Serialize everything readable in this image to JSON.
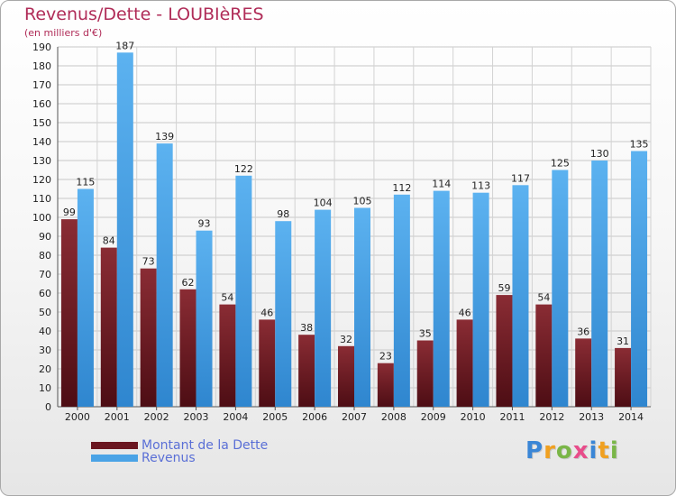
{
  "title": "Revenus/Dette - LOUBIèRES",
  "subtitle": "(en milliers d'€)",
  "brand": {
    "text": "Proxiti",
    "letter_colors": [
      "#3a86d6",
      "#f0a020",
      "#7ab648",
      "#e84c8a",
      "#3a86d6",
      "#f0a020",
      "#7ab648"
    ]
  },
  "colors": {
    "dette": "#7a1f2a",
    "revenus": "#4aa3e6",
    "title": "#b02c58",
    "legend_text": "#5a6fd6"
  },
  "legend": [
    {
      "label": "Montant de la Dette",
      "color": "#6a1620"
    },
    {
      "label": "Revenus",
      "color": "#4aa3e6"
    }
  ],
  "chart_data": {
    "type": "bar",
    "categories": [
      "2000",
      "2001",
      "2002",
      "2003",
      "2004",
      "2005",
      "2006",
      "2007",
      "2008",
      "2009",
      "2010",
      "2011",
      "2012",
      "2013",
      "2014"
    ],
    "series": [
      {
        "name": "Montant de la Dette",
        "values": [
          99,
          84,
          73,
          62,
          54,
          46,
          38,
          32,
          23,
          35,
          46,
          59,
          54,
          36,
          31
        ]
      },
      {
        "name": "Revenus",
        "values": [
          115,
          187,
          139,
          93,
          122,
          98,
          104,
          105,
          112,
          114,
          113,
          117,
          125,
          130,
          135
        ]
      }
    ],
    "ylim": [
      0,
      190
    ],
    "yticks": [
      0,
      10,
      20,
      30,
      40,
      50,
      60,
      70,
      80,
      90,
      100,
      110,
      120,
      130,
      140,
      150,
      160,
      170,
      180,
      190
    ],
    "grid": true,
    "legend_position": "bottom-left"
  }
}
